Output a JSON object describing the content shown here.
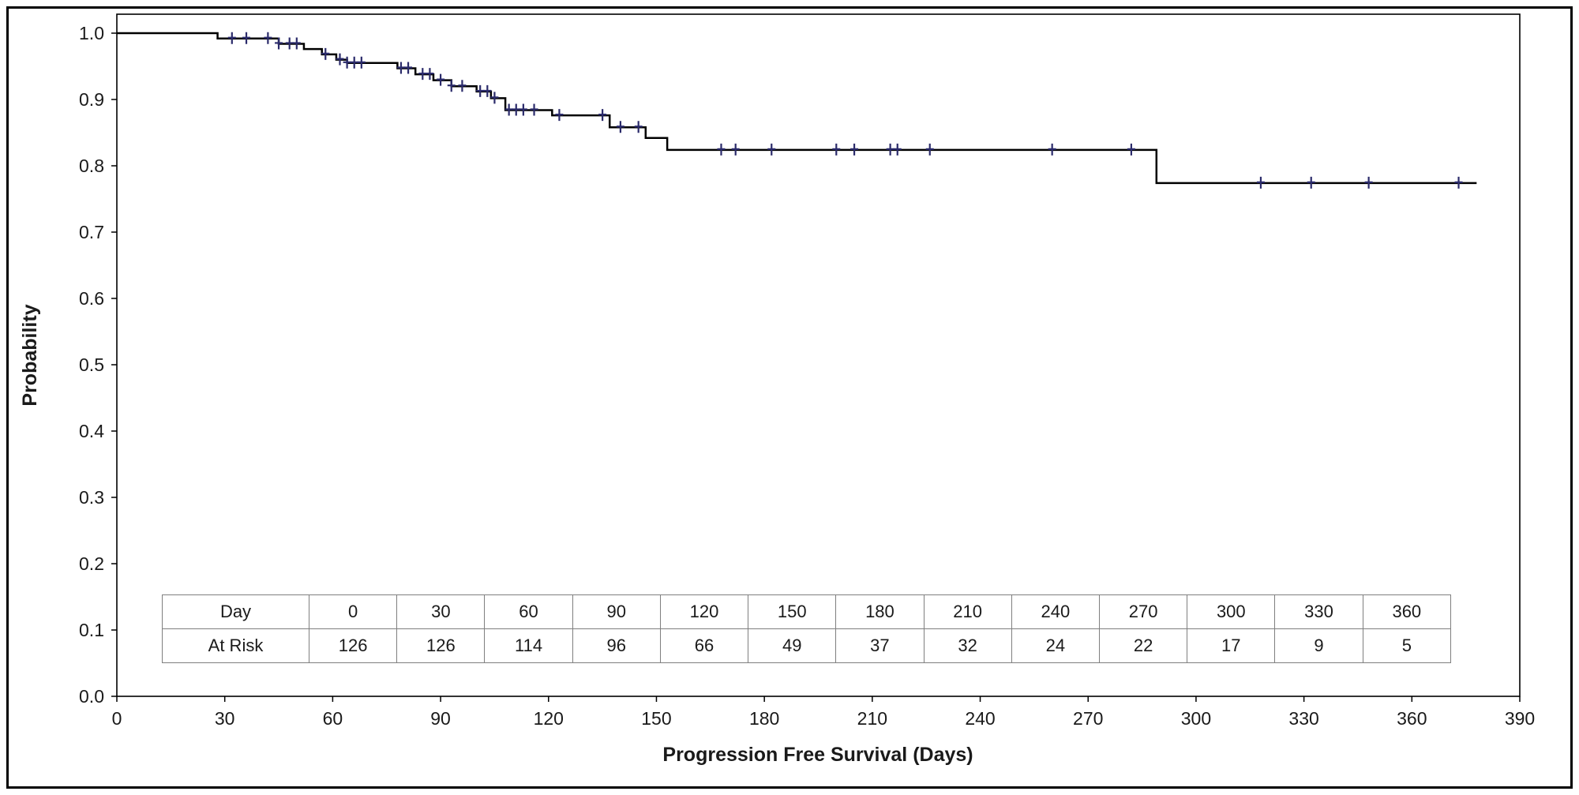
{
  "chart_data": {
    "type": "line",
    "subtype": "kaplan-meier-step",
    "title": "",
    "xlabel": "Progression Free Survival (Days)",
    "ylabel": "Probability",
    "xlim": [
      0,
      390
    ],
    "ylim": [
      0.0,
      1.0
    ],
    "grid": false,
    "x_ticks": [
      0,
      30,
      60,
      90,
      120,
      150,
      180,
      210,
      240,
      270,
      300,
      330,
      360,
      390
    ],
    "y_ticks": [
      0.0,
      0.1,
      0.2,
      0.3,
      0.4,
      0.5,
      0.6,
      0.7,
      0.8,
      0.9,
      1.0
    ],
    "y_tick_labels": [
      "0.0",
      "0.1",
      "0.2",
      "0.3",
      "0.4",
      "0.5",
      "0.6",
      "0.7",
      "0.8",
      "0.9",
      "1.0"
    ],
    "series": [
      {
        "name": "Progression Free Survival",
        "color": "#000000",
        "line_width": 2.5,
        "censor_color": "#2b2b6b",
        "end_day": 378,
        "steps": [
          [
            0,
            1.0
          ],
          [
            28,
            0.992
          ],
          [
            45,
            0.984
          ],
          [
            52,
            0.976
          ],
          [
            57,
            0.968
          ],
          [
            61,
            0.96
          ],
          [
            64,
            0.955
          ],
          [
            78,
            0.947
          ],
          [
            83,
            0.938
          ],
          [
            88,
            0.929
          ],
          [
            93,
            0.92
          ],
          [
            100,
            0.912
          ],
          [
            104,
            0.902
          ],
          [
            108,
            0.884
          ],
          [
            121,
            0.876
          ],
          [
            137,
            0.858
          ],
          [
            147,
            0.842
          ],
          [
            153,
            0.824
          ],
          [
            289,
            0.774
          ]
        ],
        "censor_times": [
          32,
          36,
          42,
          45,
          48,
          50,
          58,
          62,
          64,
          66,
          68,
          79,
          81,
          85,
          87,
          90,
          93,
          96,
          101,
          103,
          105,
          109,
          111,
          113,
          116,
          123,
          135,
          140,
          145,
          168,
          172,
          182,
          200,
          205,
          215,
          217,
          226,
          260,
          282,
          318,
          332,
          348,
          373
        ]
      }
    ],
    "at_risk_table": {
      "row_labels": [
        "Day",
        "At Risk"
      ],
      "days": [
        0,
        30,
        60,
        90,
        120,
        150,
        180,
        210,
        240,
        270,
        300,
        330,
        360
      ],
      "at_risk": [
        126,
        126,
        114,
        96,
        66,
        49,
        37,
        32,
        24,
        22,
        17,
        9,
        5
      ]
    }
  }
}
